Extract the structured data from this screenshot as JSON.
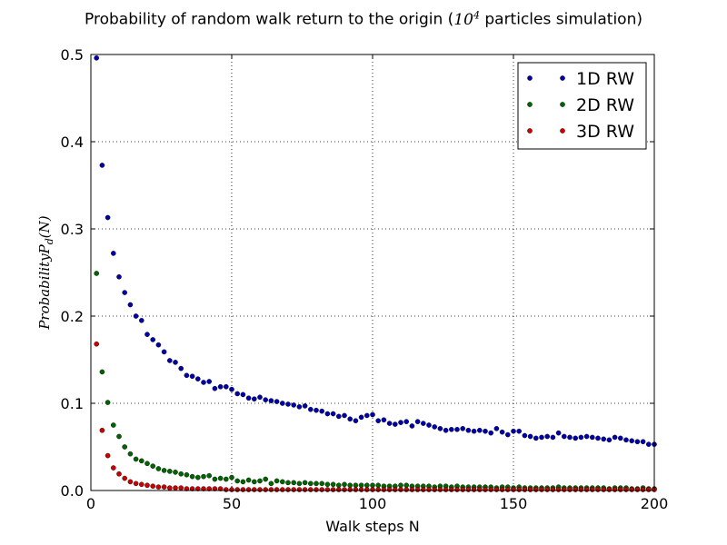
{
  "chart_data": {
    "type": "scatter",
    "title": {
      "prefix": "Probability of random walk return to the origin (",
      "math_base": "10",
      "math_exp": "4",
      "suffix": " particles simulation)"
    },
    "xlabel": "Walk steps N",
    "ylabel": "ProbabilityP_d(N)",
    "xlim": [
      0,
      200
    ],
    "ylim": [
      0,
      0.5
    ],
    "xticks": [
      "0",
      "50",
      "100",
      "150",
      "200"
    ],
    "yticks": [
      "0.0",
      "0.1",
      "0.2",
      "0.3",
      "0.4",
      "0.5"
    ],
    "grid": true,
    "legend_position": "top-right",
    "x": [
      2,
      4,
      6,
      8,
      10,
      12,
      14,
      16,
      18,
      20,
      22,
      24,
      26,
      28,
      30,
      32,
      34,
      36,
      38,
      40,
      42,
      44,
      46,
      48,
      50,
      52,
      54,
      56,
      58,
      60,
      62,
      64,
      66,
      68,
      70,
      72,
      74,
      76,
      78,
      80,
      82,
      84,
      86,
      88,
      90,
      92,
      94,
      96,
      98,
      100,
      102,
      104,
      106,
      108,
      110,
      112,
      114,
      116,
      118,
      120,
      122,
      124,
      126,
      128,
      130,
      132,
      134,
      136,
      138,
      140,
      142,
      144,
      146,
      148,
      150,
      152,
      154,
      156,
      158,
      160,
      162,
      164,
      166,
      168,
      170,
      172,
      174,
      176,
      178,
      180,
      182,
      184,
      186,
      188,
      190,
      192,
      194,
      196,
      198,
      200
    ],
    "series": [
      {
        "name": "1D RW",
        "color": "#0000aa",
        "values": [
          0.496,
          0.373,
          0.313,
          0.272,
          0.245,
          0.227,
          0.213,
          0.2,
          0.195,
          0.179,
          0.173,
          0.167,
          0.159,
          0.149,
          0.147,
          0.14,
          0.132,
          0.131,
          0.128,
          0.124,
          0.125,
          0.117,
          0.119,
          0.119,
          0.116,
          0.111,
          0.11,
          0.106,
          0.105,
          0.107,
          0.104,
          0.103,
          0.102,
          0.1,
          0.099,
          0.098,
          0.096,
          0.097,
          0.093,
          0.092,
          0.091,
          0.088,
          0.088,
          0.085,
          0.086,
          0.082,
          0.08,
          0.084,
          0.086,
          0.087,
          0.08,
          0.081,
          0.077,
          0.076,
          0.078,
          0.079,
          0.074,
          0.079,
          0.077,
          0.075,
          0.073,
          0.071,
          0.069,
          0.07,
          0.07,
          0.071,
          0.069,
          0.068,
          0.069,
          0.068,
          0.066,
          0.071,
          0.067,
          0.064,
          0.068,
          0.068,
          0.063,
          0.062,
          0.06,
          0.061,
          0.062,
          0.061,
          0.066,
          0.062,
          0.061,
          0.06,
          0.061,
          0.062,
          0.061,
          0.06,
          0.059,
          0.058,
          0.061,
          0.06,
          0.058,
          0.057,
          0.056,
          0.056,
          0.053,
          0.053
        ]
      },
      {
        "name": "2D RW",
        "color": "#006400",
        "values": [
          0.249,
          0.136,
          0.101,
          0.075,
          0.062,
          0.05,
          0.042,
          0.036,
          0.034,
          0.031,
          0.028,
          0.025,
          0.023,
          0.022,
          0.021,
          0.019,
          0.018,
          0.016,
          0.015,
          0.016,
          0.017,
          0.013,
          0.014,
          0.013,
          0.015,
          0.011,
          0.01,
          0.012,
          0.01,
          0.011,
          0.013,
          0.008,
          0.011,
          0.01,
          0.009,
          0.009,
          0.008,
          0.009,
          0.008,
          0.008,
          0.008,
          0.007,
          0.007,
          0.006,
          0.007,
          0.006,
          0.006,
          0.006,
          0.006,
          0.006,
          0.006,
          0.005,
          0.005,
          0.005,
          0.006,
          0.006,
          0.005,
          0.005,
          0.005,
          0.005,
          0.004,
          0.005,
          0.005,
          0.004,
          0.005,
          0.004,
          0.004,
          0.004,
          0.004,
          0.004,
          0.004,
          0.003,
          0.004,
          0.004,
          0.003,
          0.004,
          0.003,
          0.003,
          0.003,
          0.003,
          0.003,
          0.003,
          0.004,
          0.003,
          0.003,
          0.003,
          0.003,
          0.003,
          0.003,
          0.003,
          0.003,
          0.002,
          0.003,
          0.003,
          0.003,
          0.002,
          0.002,
          0.003,
          0.002,
          0.002
        ]
      },
      {
        "name": "3D RW",
        "color": "#cc0000",
        "values": [
          0.168,
          0.069,
          0.04,
          0.026,
          0.019,
          0.014,
          0.01,
          0.008,
          0.007,
          0.006,
          0.005,
          0.004,
          0.004,
          0.003,
          0.003,
          0.003,
          0.002,
          0.002,
          0.002,
          0.002,
          0.002,
          0.002,
          0.002,
          0.001,
          0.001,
          0.001,
          0.001,
          0.001,
          0.001,
          0.001,
          0.001,
          0.001,
          0.001,
          0.001,
          0.001,
          0.001,
          0.001,
          0.001,
          0.001,
          0.001,
          0.001,
          0.001,
          0.001,
          0.001,
          0.001,
          0.001,
          0.001,
          0.001,
          0.001,
          0.001,
          0.001,
          0.001,
          0.001,
          0.001,
          0.001,
          0.001,
          0.001,
          0.001,
          0.001,
          0.001,
          0.001,
          0.001,
          0.001,
          0.001,
          0.001,
          0.001,
          0.001,
          0.001,
          0.001,
          0.001,
          0.001,
          0.001,
          0.001,
          0.001,
          0.001,
          0.001,
          0.001,
          0.001,
          0.001,
          0.001,
          0.001,
          0.001,
          0.001,
          0.001,
          0.001,
          0.001,
          0.001,
          0.001,
          0.001,
          0.001,
          0.001,
          0.001,
          0.001,
          0.001,
          0.001,
          0.001,
          0.001,
          0.001,
          0.001,
          0.001
        ]
      }
    ]
  }
}
